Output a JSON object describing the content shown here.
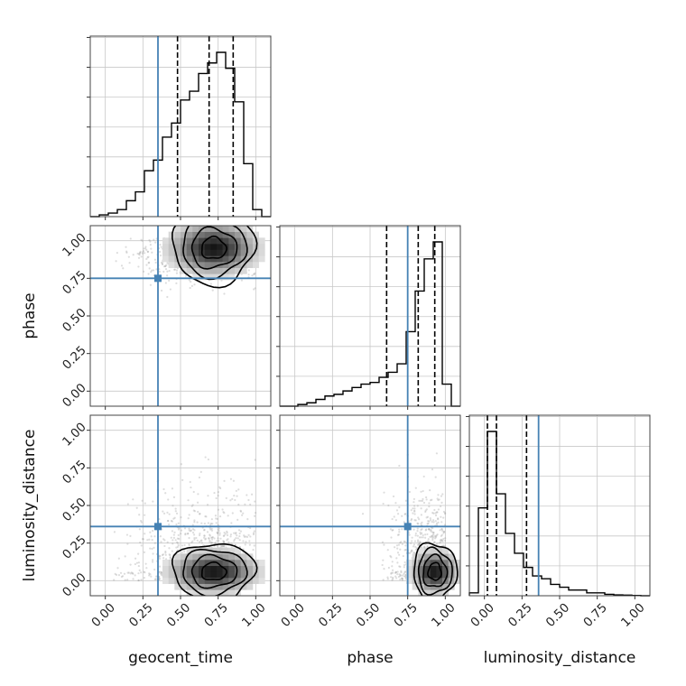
{
  "chart_data": {
    "type": "corner",
    "parameters": [
      "geocent_time",
      "phase",
      "luminosity_distance"
    ],
    "range": [
      -0.1,
      1.1
    ],
    "ticks": [
      0.0,
      0.25,
      0.5,
      0.75,
      1.0
    ],
    "tick_labels": [
      "0.00",
      "0.25",
      "0.50",
      "0.75",
      "1.00"
    ],
    "grid": true,
    "colors": {
      "truth": "#4682b4",
      "hist": "#000000",
      "scatter": "#9e9e9e"
    },
    "truths": {
      "geocent_time": 0.35,
      "phase": 0.75,
      "luminosity_distance": 0.36
    },
    "quantiles": {
      "geocent_time": [
        0.48,
        0.69,
        0.85
      ],
      "phase": [
        0.61,
        0.82,
        0.93
      ],
      "luminosity_distance": [
        0.02,
        0.08,
        0.28
      ]
    },
    "histograms": {
      "bin_edges": [
        -0.1,
        -0.04,
        0.02,
        0.08,
        0.14,
        0.2,
        0.26,
        0.32,
        0.38,
        0.44,
        0.5,
        0.56,
        0.62,
        0.68,
        0.74,
        0.8,
        0.86,
        0.92,
        0.98,
        1.04,
        1.1
      ],
      "geocent_time": [
        0,
        0.01,
        0.02,
        0.04,
        0.09,
        0.14,
        0.26,
        0.32,
        0.45,
        0.53,
        0.66,
        0.71,
        0.81,
        0.87,
        0.93,
        0.84,
        0.65,
        0.3,
        0.04,
        0
      ],
      "phase": [
        0,
        0,
        0.01,
        0.02,
        0.04,
        0.06,
        0.07,
        0.09,
        0.11,
        0.13,
        0.14,
        0.17,
        0.2,
        0.25,
        0.44,
        0.68,
        0.87,
        0.97,
        0.13,
        0
      ],
      "luminosity_distance": [
        0.01,
        0.31,
        0.58,
        0.36,
        0.22,
        0.15,
        0.1,
        0.07,
        0.06,
        0.04,
        0.03,
        0.02,
        0.02,
        0.01,
        0.01,
        0.005,
        0.003,
        0.002,
        0.001,
        0
      ]
    },
    "densities": {
      "phase_vs_geocent_time": {
        "center": [
          0.72,
          0.95
        ],
        "spread": [
          0.17,
          0.1
        ],
        "min": [
          0.05,
          0.3
        ],
        "max": [
          1.0,
          1.02
        ]
      },
      "luminosity_distance_vs_geocent_time": {
        "center": [
          0.72,
          0.06
        ],
        "spread": [
          0.17,
          0.08
        ],
        "min": [
          0.05,
          0.0
        ],
        "max": [
          1.0,
          0.85
        ]
      },
      "luminosity_distance_vs_phase": {
        "center": [
          0.93,
          0.06
        ],
        "spread": [
          0.09,
          0.08
        ],
        "min": [
          0.25,
          0.0
        ],
        "max": [
          1.0,
          0.85
        ]
      }
    }
  }
}
